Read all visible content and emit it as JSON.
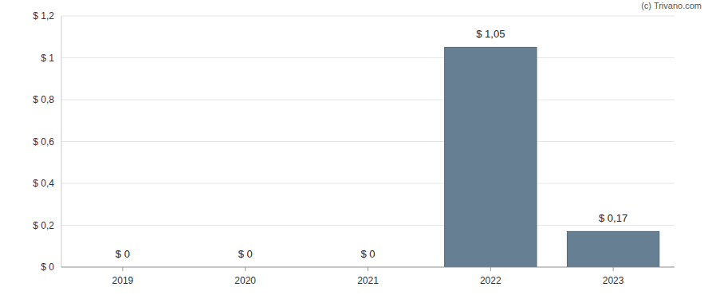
{
  "chart_data": {
    "type": "bar",
    "categories": [
      "2019",
      "2020",
      "2021",
      "2022",
      "2023"
    ],
    "values": [
      0,
      0,
      0,
      1.05,
      0.17
    ],
    "value_labels": [
      "$ 0",
      "$ 0",
      "$ 0",
      "$ 1,05",
      "$ 0,17"
    ],
    "color": "#667f93",
    "ylim": [
      0,
      1.2
    ],
    "yticks": [
      {
        "value": 0,
        "label": "$ 0"
      },
      {
        "value": 0.2,
        "label": "$ 0,2"
      },
      {
        "value": 0.4,
        "label": "$ 0,4"
      },
      {
        "value": 0.6,
        "label": "$ 0,6"
      },
      {
        "value": 0.8,
        "label": "$ 0,8"
      },
      {
        "value": 1,
        "label": "$ 1"
      },
      {
        "value": 1.2,
        "label": "$ 1,2"
      }
    ],
    "grid": true,
    "data_labels": true,
    "annotations": [
      "(c) Trivano.com"
    ]
  }
}
